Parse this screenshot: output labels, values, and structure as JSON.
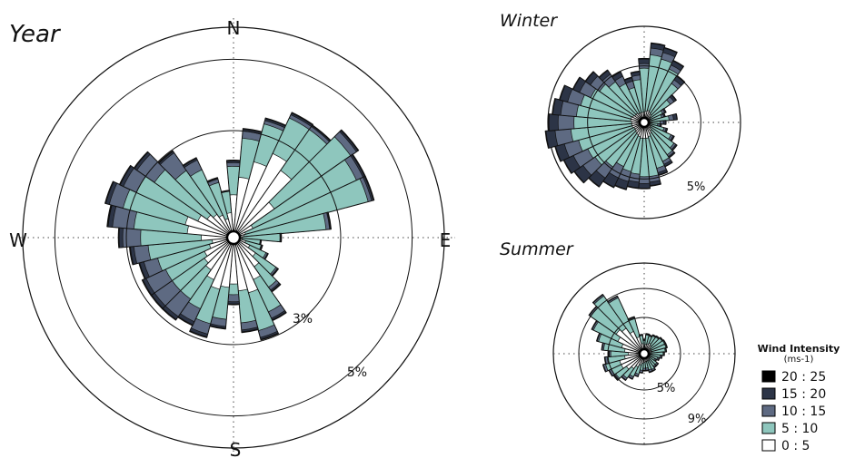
{
  "chart_data": [
    {
      "type": "wind-rose",
      "title": "Year",
      "directions": [
        "N",
        "E",
        "S",
        "W"
      ],
      "rings": [
        {
          "label": "3%",
          "value": 3
        },
        {
          "label": "5%",
          "value": 5
        }
      ],
      "rmax": 5.9,
      "sector_angles_deg": [
        0,
        10,
        20,
        30,
        40,
        50,
        60,
        70,
        80,
        90,
        100,
        110,
        120,
        130,
        140,
        150,
        160,
        170,
        180,
        190,
        200,
        210,
        220,
        230,
        240,
        250,
        260,
        270,
        280,
        290,
        300,
        310,
        320,
        330,
        340,
        350
      ],
      "cumulative_percent": [
        [
          1.2,
          1.7,
          2.2,
          2.6,
          2.3,
          1.4,
          0.6,
          0.35,
          0.3,
          0.25,
          0.25,
          0.35,
          0.5,
          0.75,
          1.0,
          1.3,
          1.6,
          1.5,
          1.3,
          1.4,
          1.5,
          1.3,
          1.1,
          1.0,
          0.9,
          0.7,
          0.6,
          0.9,
          1.3,
          1.4,
          1.1,
          0.9,
          0.8,
          0.7,
          0.55,
          0.7
        ],
        [
          2.0,
          2.8,
          3.3,
          3.7,
          3.7,
          4.0,
          3.8,
          3.9,
          2.6,
          1.3,
          0.75,
          0.8,
          1.0,
          1.45,
          1.7,
          2.3,
          2.7,
          2.4,
          1.6,
          2.3,
          2.5,
          2.2,
          2.1,
          2.1,
          2.1,
          2.2,
          2.4,
          2.6,
          2.8,
          3.2,
          3.0,
          2.7,
          2.3,
          2.1,
          1.6,
          1.3
        ],
        [
          2.1,
          3.0,
          3.4,
          3.8,
          3.8,
          4.2,
          4.0,
          4.0,
          2.7,
          1.32,
          0.76,
          0.82,
          1.05,
          1.5,
          1.8,
          2.5,
          2.9,
          2.6,
          1.8,
          2.5,
          2.8,
          2.6,
          2.7,
          2.7,
          2.7,
          2.6,
          2.8,
          3.1,
          3.4,
          3.6,
          3.4,
          3.3,
          2.9,
          2.4,
          1.7,
          1.3
        ],
        [
          2.15,
          3.05,
          3.45,
          3.85,
          3.83,
          4.25,
          4.05,
          4.05,
          2.72,
          1.33,
          0.77,
          0.83,
          1.06,
          1.52,
          1.84,
          2.55,
          2.95,
          2.65,
          1.86,
          2.55,
          2.88,
          2.7,
          2.8,
          2.8,
          2.8,
          2.72,
          2.9,
          3.2,
          3.52,
          3.7,
          3.5,
          3.38,
          2.95,
          2.45,
          1.72,
          1.32
        ],
        [
          2.17,
          3.07,
          3.47,
          3.87,
          3.85,
          4.27,
          4.07,
          4.07,
          2.74,
          1.34,
          0.78,
          0.84,
          1.07,
          1.53,
          1.86,
          2.57,
          2.97,
          2.67,
          1.88,
          2.57,
          2.9,
          2.72,
          2.82,
          2.82,
          2.82,
          2.74,
          2.92,
          3.22,
          3.55,
          3.72,
          3.52,
          3.4,
          2.97,
          2.47,
          1.74,
          1.33
        ]
      ]
    },
    {
      "type": "wind-rose",
      "title": "Winter",
      "rings": [
        {
          "label": "5%",
          "value": 5
        }
      ],
      "rmax": 8.5,
      "sector_angles_deg": [
        0,
        10,
        20,
        30,
        40,
        50,
        60,
        70,
        80,
        90,
        100,
        110,
        120,
        130,
        140,
        150,
        160,
        170,
        180,
        190,
        200,
        210,
        220,
        230,
        240,
        250,
        260,
        270,
        280,
        290,
        300,
        310,
        320,
        330,
        340,
        350
      ],
      "cumulative_percent": [
        [
          0.9,
          1.0,
          1.1,
          1.0,
          0.9,
          0.7,
          0.6,
          0.5,
          0.5,
          0.4,
          0.4,
          0.5,
          0.6,
          0.7,
          0.9,
          1.1,
          1.3,
          1.4,
          1.4,
          1.4,
          1.3,
          1.2,
          1.1,
          1.0,
          1.0,
          1.1,
          1.1,
          1.1,
          1.2,
          1.2,
          1.1,
          1.0,
          1.0,
          0.9,
          0.9,
          0.9
        ],
        [
          4.8,
          6.0,
          5.8,
          5.2,
          4.2,
          2.8,
          1.8,
          1.6,
          2.2,
          1.4,
          1.2,
          1.8,
          2.6,
          3.2,
          3.5,
          3.8,
          4.2,
          4.8,
          4.8,
          4.6,
          4.5,
          4.3,
          4.8,
          5.3,
          5.5,
          6.0,
          6.5,
          6.2,
          6.0,
          5.8,
          5.2,
          4.8,
          4.4,
          3.8,
          3.2,
          3.8
        ],
        [
          5.2,
          6.6,
          6.4,
          5.6,
          4.6,
          3.2,
          2.0,
          1.8,
          2.6,
          1.7,
          1.4,
          2.0,
          2.8,
          3.4,
          3.7,
          4.1,
          4.6,
          5.3,
          5.4,
          5.3,
          5.4,
          5.4,
          6.0,
          6.6,
          6.9,
          7.3,
          7.9,
          7.6,
          7.4,
          7.0,
          6.3,
          5.8,
          5.2,
          4.5,
          3.8,
          4.2
        ],
        [
          5.6,
          7.0,
          6.8,
          6.0,
          5.0,
          3.4,
          2.1,
          1.9,
          2.9,
          1.9,
          1.5,
          2.1,
          2.9,
          3.5,
          3.8,
          4.3,
          4.8,
          5.6,
          5.8,
          5.8,
          6.1,
          6.3,
          6.9,
          7.5,
          7.8,
          8.1,
          8.7,
          8.4,
          8.1,
          7.7,
          6.9,
          6.3,
          5.6,
          4.9,
          4.1,
          4.5
        ],
        [
          5.65,
          7.05,
          6.85,
          6.05,
          5.05,
          3.45,
          2.12,
          1.92,
          2.92,
          1.92,
          1.52,
          2.12,
          2.92,
          3.52,
          3.82,
          4.32,
          4.85,
          5.65,
          5.85,
          5.85,
          6.15,
          6.35,
          6.95,
          7.55,
          7.85,
          8.15,
          8.75,
          8.45,
          8.15,
          7.75,
          6.95,
          6.35,
          5.65,
          4.95,
          4.15,
          4.55
        ]
      ]
    },
    {
      "type": "wind-rose",
      "title": "Summer",
      "rings": [
        {
          "label": "5%",
          "value": 5
        },
        {
          "label": "9%",
          "value": 9
        }
      ],
      "rmax": 12.5,
      "sector_angles_deg": [
        0,
        10,
        20,
        30,
        40,
        50,
        60,
        70,
        80,
        90,
        100,
        110,
        120,
        130,
        140,
        150,
        160,
        170,
        180,
        190,
        200,
        210,
        220,
        230,
        240,
        250,
        260,
        270,
        280,
        290,
        300,
        310,
        320,
        330,
        340,
        350
      ],
      "cumulative_percent": [
        [
          1.0,
          1.3,
          1.4,
          1.6,
          1.4,
          1.1,
          1.1,
          1.0,
          1.0,
          0.9,
          0.8,
          0.8,
          0.8,
          0.9,
          1.0,
          1.1,
          1.1,
          1.1,
          1.2,
          1.3,
          1.6,
          2.0,
          2.5,
          3.0,
          3.5,
          3.5,
          2.7,
          2.2,
          2.7,
          3.2,
          4.0,
          4.7,
          4.3,
          3.4,
          2.4,
          1.4
        ],
        [
          1.8,
          2.6,
          2.5,
          2.7,
          2.8,
          3.0,
          3.1,
          3.1,
          2.9,
          2.6,
          2.2,
          1.9,
          1.6,
          2.1,
          2.1,
          2.4,
          2.3,
          2.0,
          2.0,
          2.3,
          2.9,
          3.5,
          4.1,
          4.8,
          5.0,
          5.5,
          5.1,
          4.6,
          5.6,
          6.5,
          7.7,
          9.0,
          9.7,
          8.5,
          5.1,
          2.5
        ],
        [
          1.9,
          2.7,
          2.6,
          2.8,
          2.9,
          3.1,
          3.2,
          3.2,
          3.0,
          2.7,
          2.4,
          2.1,
          1.8,
          2.3,
          2.3,
          2.6,
          2.6,
          2.3,
          2.3,
          2.6,
          3.2,
          3.8,
          4.4,
          5.1,
          5.3,
          5.8,
          5.4,
          4.8,
          5.8,
          6.7,
          7.9,
          9.2,
          9.9,
          8.7,
          5.2,
          2.6
        ],
        [
          1.95,
          2.75,
          2.65,
          2.85,
          2.95,
          3.15,
          3.25,
          3.25,
          3.05,
          2.75,
          2.45,
          2.15,
          1.85,
          2.35,
          2.35,
          2.65,
          2.65,
          2.35,
          2.35,
          2.65,
          3.25,
          3.85,
          4.45,
          5.15,
          5.35,
          5.85,
          5.45,
          4.85,
          5.85,
          6.75,
          7.95,
          9.25,
          9.95,
          8.75,
          5.25,
          2.65
        ],
        [
          1.97,
          2.77,
          2.67,
          2.87,
          2.97,
          3.17,
          3.27,
          3.27,
          3.07,
          2.77,
          2.47,
          2.17,
          1.87,
          2.37,
          2.37,
          2.67,
          2.67,
          2.37,
          2.37,
          2.67,
          3.27,
          3.87,
          4.47,
          5.17,
          5.37,
          5.87,
          5.47,
          4.87,
          5.87,
          6.77,
          7.97,
          9.27,
          9.97,
          8.77,
          5.27,
          2.67
        ]
      ]
    }
  ],
  "legend": {
    "title": "Wind Intensity",
    "unit": "(ms-1)",
    "items": [
      {
        "label": "20 : 25",
        "color": "#000000"
      },
      {
        "label": "15 : 20",
        "color": "#2c3446"
      },
      {
        "label": "10 : 15",
        "color": "#5e6a82"
      },
      {
        "label": "5 : 10",
        "color": "#8ec6bd"
      },
      {
        "label": "0 : 5",
        "color": "#ffffff"
      }
    ]
  }
}
